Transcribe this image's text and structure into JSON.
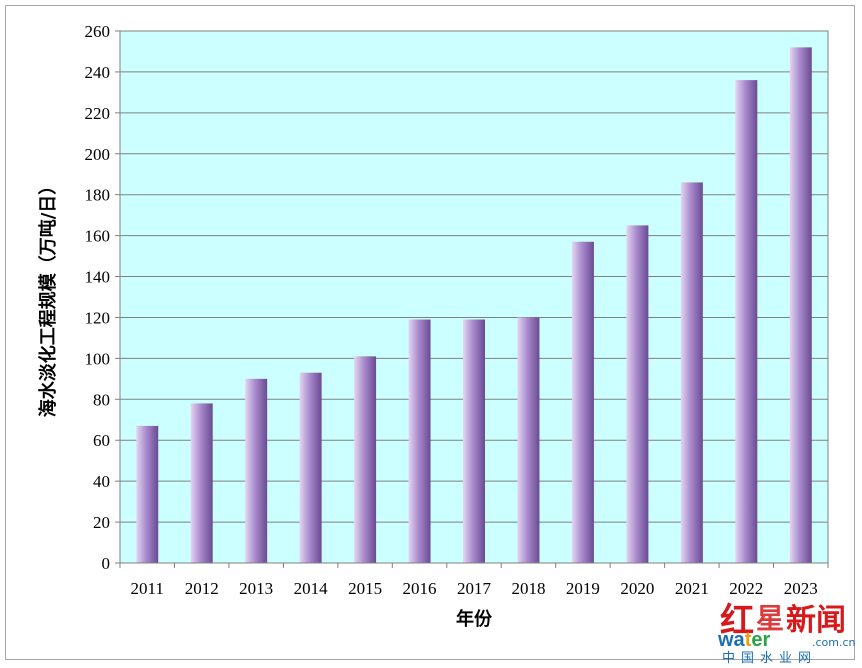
{
  "chart_data": {
    "type": "bar",
    "title": "",
    "xlabel": "年份",
    "ylabel": "海水淡化工程规模（万吨/日）",
    "ylim": [
      0,
      260
    ],
    "yticks": [
      0,
      20,
      40,
      60,
      80,
      100,
      120,
      140,
      160,
      180,
      200,
      220,
      240,
      260
    ],
    "categories": [
      "2011",
      "2012",
      "2013",
      "2014",
      "2015",
      "2016",
      "2017",
      "2018",
      "2019",
      "2020",
      "2021",
      "2022",
      "2023"
    ],
    "values": [
      67,
      78,
      90,
      93,
      101,
      119,
      119,
      120,
      157,
      165,
      186,
      236,
      252
    ],
    "grid": true,
    "colors": {
      "plot_background": "#ccffff",
      "bar_light": "#e4d6f2",
      "bar_mid": "#a98bcd",
      "bar_dark": "#6a4a93",
      "gridline": "#808080"
    }
  },
  "watermark": {
    "text_1": "红星新闻",
    "text_2": "water",
    "text_3": "中国水业网"
  }
}
